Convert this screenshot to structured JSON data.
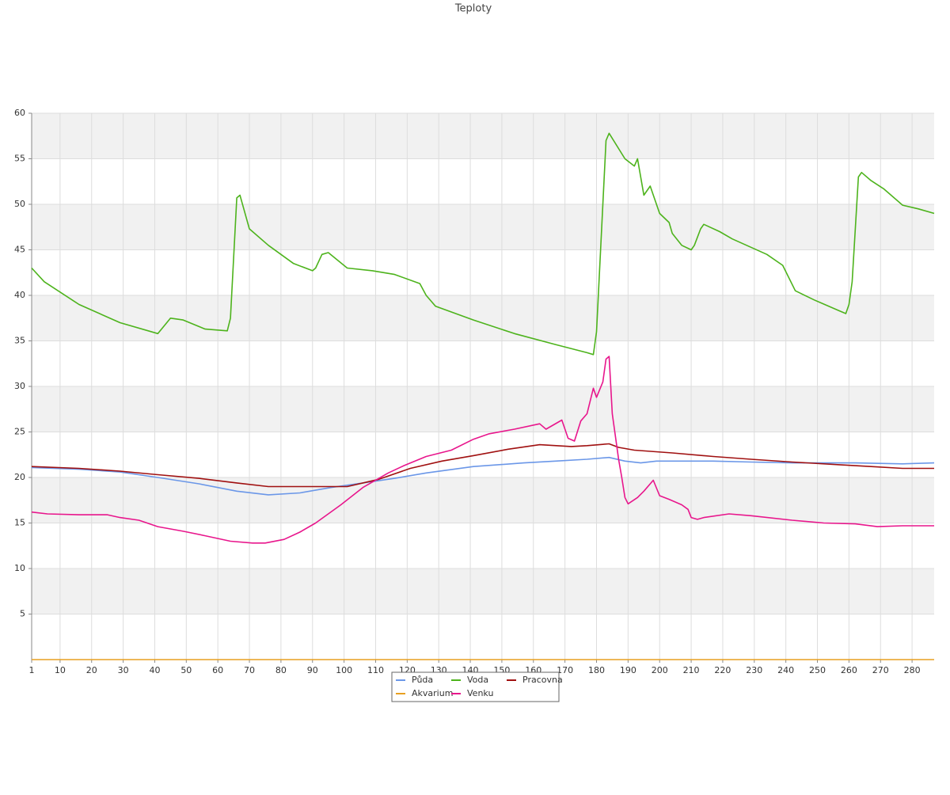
{
  "chart_data": {
    "type": "line",
    "title": "Teploty",
    "xlim": [
      1,
      287
    ],
    "xticks": [
      1,
      10,
      20,
      30,
      40,
      50,
      60,
      70,
      80,
      90,
      100,
      110,
      120,
      130,
      140,
      150,
      160,
      170,
      180,
      190,
      200,
      210,
      220,
      230,
      240,
      250,
      260,
      270,
      280
    ],
    "ylim": [
      0,
      60
    ],
    "yticks": [
      5,
      10,
      15,
      20,
      25,
      30,
      35,
      40,
      45,
      50,
      55,
      60
    ],
    "grid": true,
    "legend": "bottom",
    "series": [
      {
        "name": "Půda",
        "color": "#6b97e8",
        "x": [
          1,
          16,
          29,
          41,
          54,
          66,
          76,
          86,
          96,
          106,
          116,
          126,
          141,
          157,
          167,
          177,
          184,
          189,
          194,
          199,
          207,
          217,
          229,
          242,
          262,
          277,
          287
        ],
        "values": [
          21.1,
          20.9,
          20.6,
          20.0,
          19.3,
          18.5,
          18.1,
          18.3,
          18.9,
          19.4,
          19.9,
          20.5,
          21.2,
          21.6,
          21.8,
          22.0,
          22.2,
          21.8,
          21.6,
          21.8,
          21.8,
          21.8,
          21.7,
          21.6,
          21.6,
          21.5,
          21.6
        ]
      },
      {
        "name": "Voda",
        "color": "#4db31c",
        "x": [
          1,
          5,
          16,
          29,
          41,
          45,
          49,
          56,
          63,
          64,
          66,
          67,
          70,
          76,
          84,
          90,
          91,
          93,
          95,
          101,
          109,
          116,
          124,
          126,
          129,
          141,
          154,
          167,
          177,
          179,
          180,
          183,
          184,
          189,
          192,
          193,
          195,
          197,
          200,
          203,
          204,
          207,
          210,
          211,
          213,
          214,
          219,
          223,
          234,
          239,
          243,
          249,
          257,
          259,
          260,
          261,
          263,
          264,
          267,
          271,
          277,
          282,
          287
        ],
        "values": [
          43.0,
          41.5,
          39.0,
          37.0,
          35.8,
          37.5,
          37.3,
          36.3,
          36.1,
          37.5,
          50.7,
          51.0,
          47.3,
          45.5,
          43.5,
          42.7,
          43.0,
          44.5,
          44.7,
          43.0,
          42.7,
          42.3,
          41.3,
          40.0,
          38.8,
          37.3,
          35.8,
          34.6,
          33.7,
          33.5,
          36.0,
          57.0,
          57.8,
          55.0,
          54.2,
          55.0,
          51.0,
          52.0,
          49.0,
          48.0,
          46.8,
          45.5,
          45.0,
          45.5,
          47.3,
          47.8,
          47.0,
          46.2,
          44.5,
          43.3,
          40.5,
          39.5,
          38.3,
          38.0,
          39.0,
          41.5,
          53.0,
          53.5,
          52.6,
          51.7,
          49.9,
          49.5,
          49.0
        ]
      },
      {
        "name": "Pracovna",
        "color": "#a01010",
        "x": [
          1,
          16,
          29,
          41,
          54,
          66,
          76,
          91,
          101,
          111,
          121,
          131,
          141,
          152,
          162,
          172,
          177,
          184,
          187,
          192,
          204,
          217,
          229,
          242,
          257,
          267,
          277,
          287
        ],
        "values": [
          21.2,
          21.0,
          20.7,
          20.3,
          19.9,
          19.4,
          19.0,
          19.0,
          19.0,
          19.8,
          21.0,
          21.8,
          22.4,
          23.1,
          23.6,
          23.4,
          23.5,
          23.7,
          23.3,
          23.0,
          22.7,
          22.3,
          22.0,
          21.7,
          21.4,
          21.2,
          21.0,
          21.0
        ]
      },
      {
        "name": "Akvarium",
        "color": "#e8a020",
        "x": [
          1,
          287
        ],
        "values": [
          0,
          0
        ]
      },
      {
        "name": "Venku",
        "color": "#e8168c",
        "x": [
          1,
          6,
          16,
          25,
          29,
          35,
          41,
          49,
          56,
          64,
          71,
          75,
          81,
          86,
          91,
          99,
          106,
          114,
          119,
          126,
          134,
          141,
          146,
          154,
          162,
          164,
          169,
          171,
          173,
          175,
          177,
          179,
          180,
          182,
          183,
          184,
          185,
          187,
          188,
          189,
          190,
          193,
          195,
          198,
          200,
          203,
          207,
          209,
          210,
          212,
          214,
          222,
          229,
          242,
          252,
          262,
          269,
          277,
          282,
          287
        ],
        "values": [
          16.2,
          16.0,
          15.9,
          15.9,
          15.6,
          15.3,
          14.6,
          14.1,
          13.6,
          13.0,
          12.8,
          12.8,
          13.2,
          14.0,
          15.0,
          17.0,
          18.9,
          20.5,
          21.3,
          22.3,
          23.0,
          24.2,
          24.8,
          25.3,
          25.9,
          25.3,
          26.3,
          24.3,
          24.0,
          26.2,
          27.0,
          29.8,
          28.8,
          30.5,
          33.0,
          33.3,
          27.0,
          22.0,
          20.0,
          17.8,
          17.1,
          17.8,
          18.5,
          19.7,
          18.0,
          17.6,
          17.0,
          16.5,
          15.6,
          15.4,
          15.6,
          16.0,
          15.8,
          15.3,
          15.0,
          14.9,
          14.6,
          14.7,
          14.7,
          14.7
        ]
      }
    ]
  }
}
